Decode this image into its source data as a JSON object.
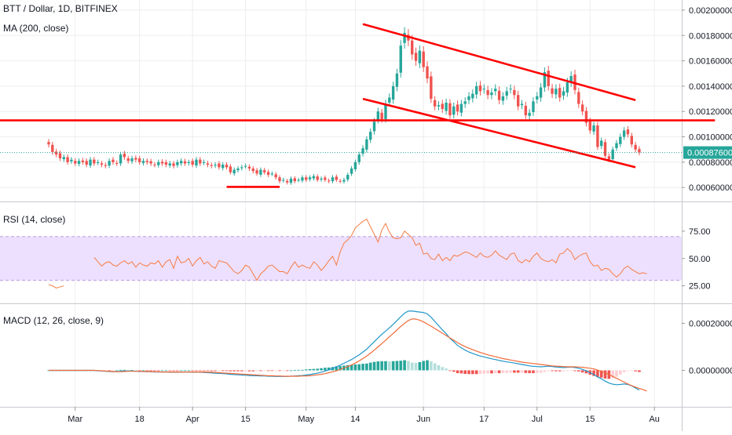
{
  "colors": {
    "up": "#26a69a",
    "down": "#ef5350",
    "trendline": "#ff0000",
    "rsi_line": "#f57c43",
    "rsi_band": "#ede0ff",
    "macd_line": "#2196c9",
    "signal_line": "#f06a38",
    "hist_up_strong": "#26a69a",
    "hist_up_weak": "#b2dfdb",
    "hist_down_strong": "#ef5350",
    "hist_down_weak": "#ffcdd2",
    "price_marker": "#26a69a",
    "grid": "#eeeeee",
    "axis_text": "#131722"
  },
  "chart_data": [
    {
      "type": "candlestick",
      "title": "BTT / Dollar, 1D, BITFINEX",
      "indicator_label": "MA (200, close)",
      "grid": true,
      "y_tick_labels": [
        "0.00200000",
        "0.00180000",
        "0.00160000",
        "0.00140000",
        "0.00120000",
        "0.00100000",
        "0.00080000",
        "0.00060000"
      ],
      "y_ticks": [
        0.002,
        0.0018,
        0.0016,
        0.0014,
        0.0012,
        0.001,
        0.0008,
        0.0006
      ],
      "ylim": [
        0.00049,
        0.00208
      ],
      "current_price_label": "0.00087600",
      "current_price": 0.000876,
      "trendlines": [
        {
          "name": "horizontal resistance",
          "x": [
            -29,
            176
          ],
          "y": [
            0.00113,
            0.00113
          ]
        },
        {
          "name": "channel upper",
          "x": [
            83,
            155
          ],
          "y": [
            0.00189,
            0.00129
          ]
        },
        {
          "name": "channel lower",
          "x": [
            83,
            155
          ],
          "y": [
            0.0013,
            0.00076
          ]
        },
        {
          "name": "support",
          "x": [
            47,
            61
          ],
          "y": [
            0.000605,
            0.000605
          ]
        }
      ],
      "closes": [
        0.00094,
        0.00088,
        0.00086,
        0.00083,
        0.00084,
        0.0008,
        0.00082,
        0.00079,
        0.00081,
        0.0008,
        0.00078,
        0.00082,
        0.00079,
        0.0008,
        0.00078,
        0.00077,
        0.00081,
        0.0008,
        0.00079,
        0.00086,
        0.00084,
        0.00081,
        0.00083,
        0.00082,
        0.0008,
        0.00081,
        0.0008,
        0.00079,
        0.00078,
        0.0008,
        0.00079,
        0.00078,
        0.00079,
        0.00077,
        0.0008,
        0.00081,
        0.00079,
        0.0008,
        0.00078,
        0.00082,
        0.00079,
        0.0008,
        0.00078,
        0.00077,
        0.00078,
        0.00076,
        0.00078,
        0.00076,
        0.00072,
        0.00074,
        0.00075,
        0.00076,
        0.00077,
        0.00075,
        0.00073,
        0.00071,
        0.00074,
        0.00072,
        0.0007,
        0.00071,
        0.00068,
        0.00065,
        0.00066,
        0.00064,
        0.00067,
        0.00065,
        0.00066,
        0.00068,
        0.00066,
        0.00068,
        0.00069,
        0.00066,
        0.00067,
        0.00066,
        0.00065,
        0.00068,
        0.00066,
        0.00065,
        0.00066,
        0.0007,
        0.00075,
        0.0008,
        0.00086,
        0.00091,
        0.00098,
        0.00104,
        0.00112,
        0.0012,
        0.00114,
        0.00126,
        0.00131,
        0.0014,
        0.0015,
        0.00172,
        0.00182,
        0.00176,
        0.00165,
        0.0016,
        0.00168,
        0.00155,
        0.00146,
        0.0013,
        0.00124,
        0.00125,
        0.00122,
        0.00127,
        0.00117,
        0.00124,
        0.0012,
        0.00126,
        0.00128,
        0.00132,
        0.00134,
        0.0014,
        0.00136,
        0.00138,
        0.00133,
        0.00135,
        0.00138,
        0.00129,
        0.00132,
        0.00136,
        0.00138,
        0.00133,
        0.00124,
        0.00126,
        0.00117,
        0.00119,
        0.00128,
        0.00132,
        0.00139,
        0.00151,
        0.0014,
        0.00134,
        0.00138,
        0.00131,
        0.00136,
        0.00143,
        0.00148,
        0.00137,
        0.00126,
        0.0012,
        0.00111,
        0.00105,
        0.00109,
        0.00092,
        0.00097,
        0.00085,
        0.00082,
        0.0009,
        0.00095,
        0.001,
        0.00105,
        0.00102,
        0.00094,
        0.0009,
        0.000876
      ]
    },
    {
      "type": "line",
      "title": "RSI (14, close)",
      "y_tick_labels": [
        "75.00",
        "50.00",
        "25.00"
      ],
      "y_ticks": [
        75,
        50,
        25
      ],
      "ylim": [
        9,
        100
      ],
      "band": [
        30,
        70
      ],
      "values": [
        26,
        25,
        23,
        24,
        25,
        null,
        null,
        null,
        null,
        null,
        null,
        null,
        51,
        47,
        43,
        46,
        47,
        44,
        43,
        46,
        48,
        45,
        47,
        42,
        46,
        44,
        43,
        46,
        45,
        48,
        42,
        47,
        49,
        41,
        52,
        46,
        47,
        50,
        43,
        48,
        51,
        45,
        47,
        43,
        41,
        48,
        47,
        46,
        42,
        38,
        36,
        39,
        44,
        42,
        36,
        30,
        36,
        39,
        43,
        44,
        41,
        38,
        38,
        36,
        42,
        47,
        42,
        44,
        42,
        41,
        47,
        44,
        39,
        43,
        48,
        52,
        44,
        56,
        64,
        67,
        71,
        78,
        81,
        84,
        86,
        79,
        72,
        65,
        76,
        82,
        74,
        69,
        68,
        69,
        75,
        72,
        69,
        62,
        64,
        54,
        55,
        50,
        49,
        54,
        48,
        51,
        48,
        53,
        52,
        54,
        56,
        55,
        53,
        51,
        55,
        52,
        51,
        53,
        57,
        53,
        51,
        49,
        54,
        55,
        48,
        46,
        49,
        47,
        52,
        55,
        50,
        48,
        47,
        49,
        46,
        54,
        55,
        59,
        56,
        49,
        52,
        54,
        55,
        47,
        43,
        44,
        39,
        41,
        40,
        36,
        33,
        36,
        41,
        43,
        40,
        38,
        36,
        37,
        36
      ]
    },
    {
      "type": "bar",
      "title": "MACD (12, 26, close, 9)",
      "y_tick_labels": [
        "0.00020000",
        "0.00000000"
      ],
      "y_ticks": [
        0.0002,
        0
      ],
      "ylim": [
        -0.000155,
        0.000275
      ],
      "macd": [
        0,
        0,
        0,
        0,
        0,
        0,
        0,
        0,
        0,
        0,
        0,
        0,
        0,
        -2e-06,
        -3e-06,
        -4e-06,
        -5e-06,
        -6e-06,
        -6e-06,
        -4e-06,
        -3e-06,
        -3e-06,
        -3e-06,
        -4e-06,
        -5e-06,
        -5e-06,
        -6e-06,
        -6e-06,
        -7e-06,
        -7e-06,
        -7e-06,
        -7e-06,
        -8e-06,
        -8e-06,
        -8e-06,
        -7e-06,
        -7e-06,
        -7e-06,
        -8e-06,
        -8e-06,
        -8e-06,
        -9e-06,
        -1e-05,
        -1.1e-05,
        -1.2e-05,
        -1.3e-05,
        -1.4e-05,
        -1.5e-05,
        -1.7e-05,
        -1.8e-05,
        -1.9e-05,
        -2e-05,
        -2.1e-05,
        -2.2e-05,
        -2.3e-05,
        -2.3e-05,
        -2.4e-05,
        -2.4e-05,
        -2.5e-05,
        -2.5e-05,
        -2.6e-05,
        -2.6e-05,
        -2.6e-05,
        -2.6e-05,
        -2.5e-05,
        -2.4e-05,
        -2.3e-05,
        -2.2e-05,
        -2e-05,
        -1.8e-05,
        -1.5e-05,
        -1.2e-05,
        -8e-06,
        -3e-06,
        2e-06,
        8e-06,
        1.5e-05,
        2.2e-05,
        3e-05,
        3.8e-05,
        4.6e-05,
        5.6e-05,
        6.6e-05,
        7.8e-05,
        9e-05,
        0.000106,
        0.000122,
        0.000138,
        0.000153,
        0.000167,
        0.000181,
        0.000196,
        0.000212,
        0.000228,
        0.000243,
        0.000252,
        0.000252,
        0.00025,
        0.000248,
        0.000246,
        0.00024,
        0.000226,
        0.000208,
        0.00019,
        0.000172,
        0.000156,
        0.000136,
        0.000122,
        0.000106,
        9.6e-05,
        8.6e-05,
        7.8e-05,
        7.2e-05,
        6.6e-05,
        6.1e-05,
        5.7e-05,
        5.3e-05,
        4.9e-05,
        4.6e-05,
        4.2e-05,
        3.9e-05,
        3.6e-05,
        3.4e-05,
        3.1e-05,
        2.8e-05,
        2.5e-05,
        2.2e-05,
        1.9e-05,
        1.7e-05,
        1.6e-05,
        1.5e-05,
        1.6e-05,
        1.8e-05,
        1.6e-05,
        1.4e-05,
        1.3e-05,
        1.2e-05,
        1.3e-05,
        1.4e-05,
        1.2e-05,
        9e-06,
        4e-06,
        -2e-06,
        -1e-05,
        -1.8e-05,
        -2.8e-05,
        -3.6e-05,
        -4.6e-05,
        -5.4e-05,
        -5.9e-05,
        -6.1e-05,
        -6e-05,
        -5.8e-05,
        -6e-05,
        -6.6e-05,
        -7.5e-05,
        -8.4e-05
      ],
      "signal": [
        0,
        0,
        0,
        0,
        0,
        0,
        0,
        0,
        0,
        0,
        0,
        0,
        0,
        -1e-06,
        -2e-06,
        -3e-06,
        -4e-06,
        -5e-06,
        -6e-06,
        -6e-06,
        -5e-06,
        -4e-06,
        -4e-06,
        -4e-06,
        -4e-06,
        -5e-06,
        -5e-06,
        -5e-06,
        -6e-06,
        -6e-06,
        -7e-06,
        -7e-06,
        -7e-06,
        -7e-06,
        -7e-06,
        -7e-06,
        -7e-06,
        -7e-06,
        -7e-06,
        -7e-06,
        -7e-06,
        -7e-06,
        -8e-06,
        -8e-06,
        -9e-06,
        -1e-05,
        -1.1e-05,
        -1.2e-05,
        -1.3e-05,
        -1.4e-05,
        -1.5e-05,
        -1.6e-05,
        -1.7e-05,
        -1.8e-05,
        -1.9e-05,
        -2e-05,
        -2.1e-05,
        -2.2e-05,
        -2.3e-05,
        -2.3e-05,
        -2.4e-05,
        -2.4e-05,
        -2.5e-05,
        -2.5e-05,
        -2.5e-05,
        -2.5e-05,
        -2.5e-05,
        -2.4e-05,
        -2.4e-05,
        -2.3e-05,
        -2.1e-05,
        -1.9e-05,
        -1.7e-05,
        -1.4e-05,
        -1e-05,
        -6e-06,
        -2e-06,
        4e-06,
        1e-05,
        1.6e-05,
        2.3e-05,
        3.1e-05,
        4e-05,
        5e-05,
        6.1e-05,
        7.3e-05,
        8.6e-05,
        0.0001,
        0.000114,
        0.000128,
        0.000143,
        0.000157,
        0.000172,
        0.000187,
        0.0002,
        0.000212,
        0.000219,
        0.000218,
        0.000213,
        0.000206,
        0.000197,
        0.000188,
        0.000178,
        0.000168,
        0.000158,
        0.000148,
        0.000138,
        0.000128,
        0.000118,
        0.000109,
        0.000101,
        9.4e-05,
        8.8e-05,
        8.2e-05,
        7.6e-05,
        7.1e-05,
        6.6e-05,
        6.2e-05,
        5.8e-05,
        5.4e-05,
        5e-05,
        4.7e-05,
        4.4e-05,
        4.1e-05,
        3.8e-05,
        3.5e-05,
        3.3e-05,
        3.1e-05,
        2.9e-05,
        2.7e-05,
        2.5e-05,
        2.3e-05,
        2.1e-05,
        1.9e-05,
        1.8e-05,
        1.7e-05,
        1.6e-05,
        1.5e-05,
        1.5e-05,
        1.5e-05,
        1.4e-05,
        1.3e-05,
        1.1e-05,
        9e-06,
        6e-06,
        1e-06,
        -5e-06,
        -1.1e-05,
        -1.8e-05,
        -2.6e-05,
        -3.4e-05,
        -4.2e-05,
        -5e-05,
        -5.8e-05,
        -6.5e-05,
        -7.1e-05,
        -7.7e-05,
        -8.2e-05,
        -8.8e-05
      ]
    }
  ],
  "x_axis": {
    "type": "date",
    "tick_labels": [
      "Mar",
      "18",
      "Apr",
      "15",
      "May",
      "14",
      "Jun",
      "17",
      "Jul",
      "15",
      "Au"
    ],
    "tick_dates": [
      "2019-03-01",
      "2019-03-18",
      "2019-04-01",
      "2019-04-15",
      "2019-05-01",
      "2019-05-14",
      "2019-06-01",
      "2019-06-17",
      "2019-07-01",
      "2019-07-15",
      "2019-08-01"
    ],
    "first_bar_date": "2019-02-22"
  }
}
